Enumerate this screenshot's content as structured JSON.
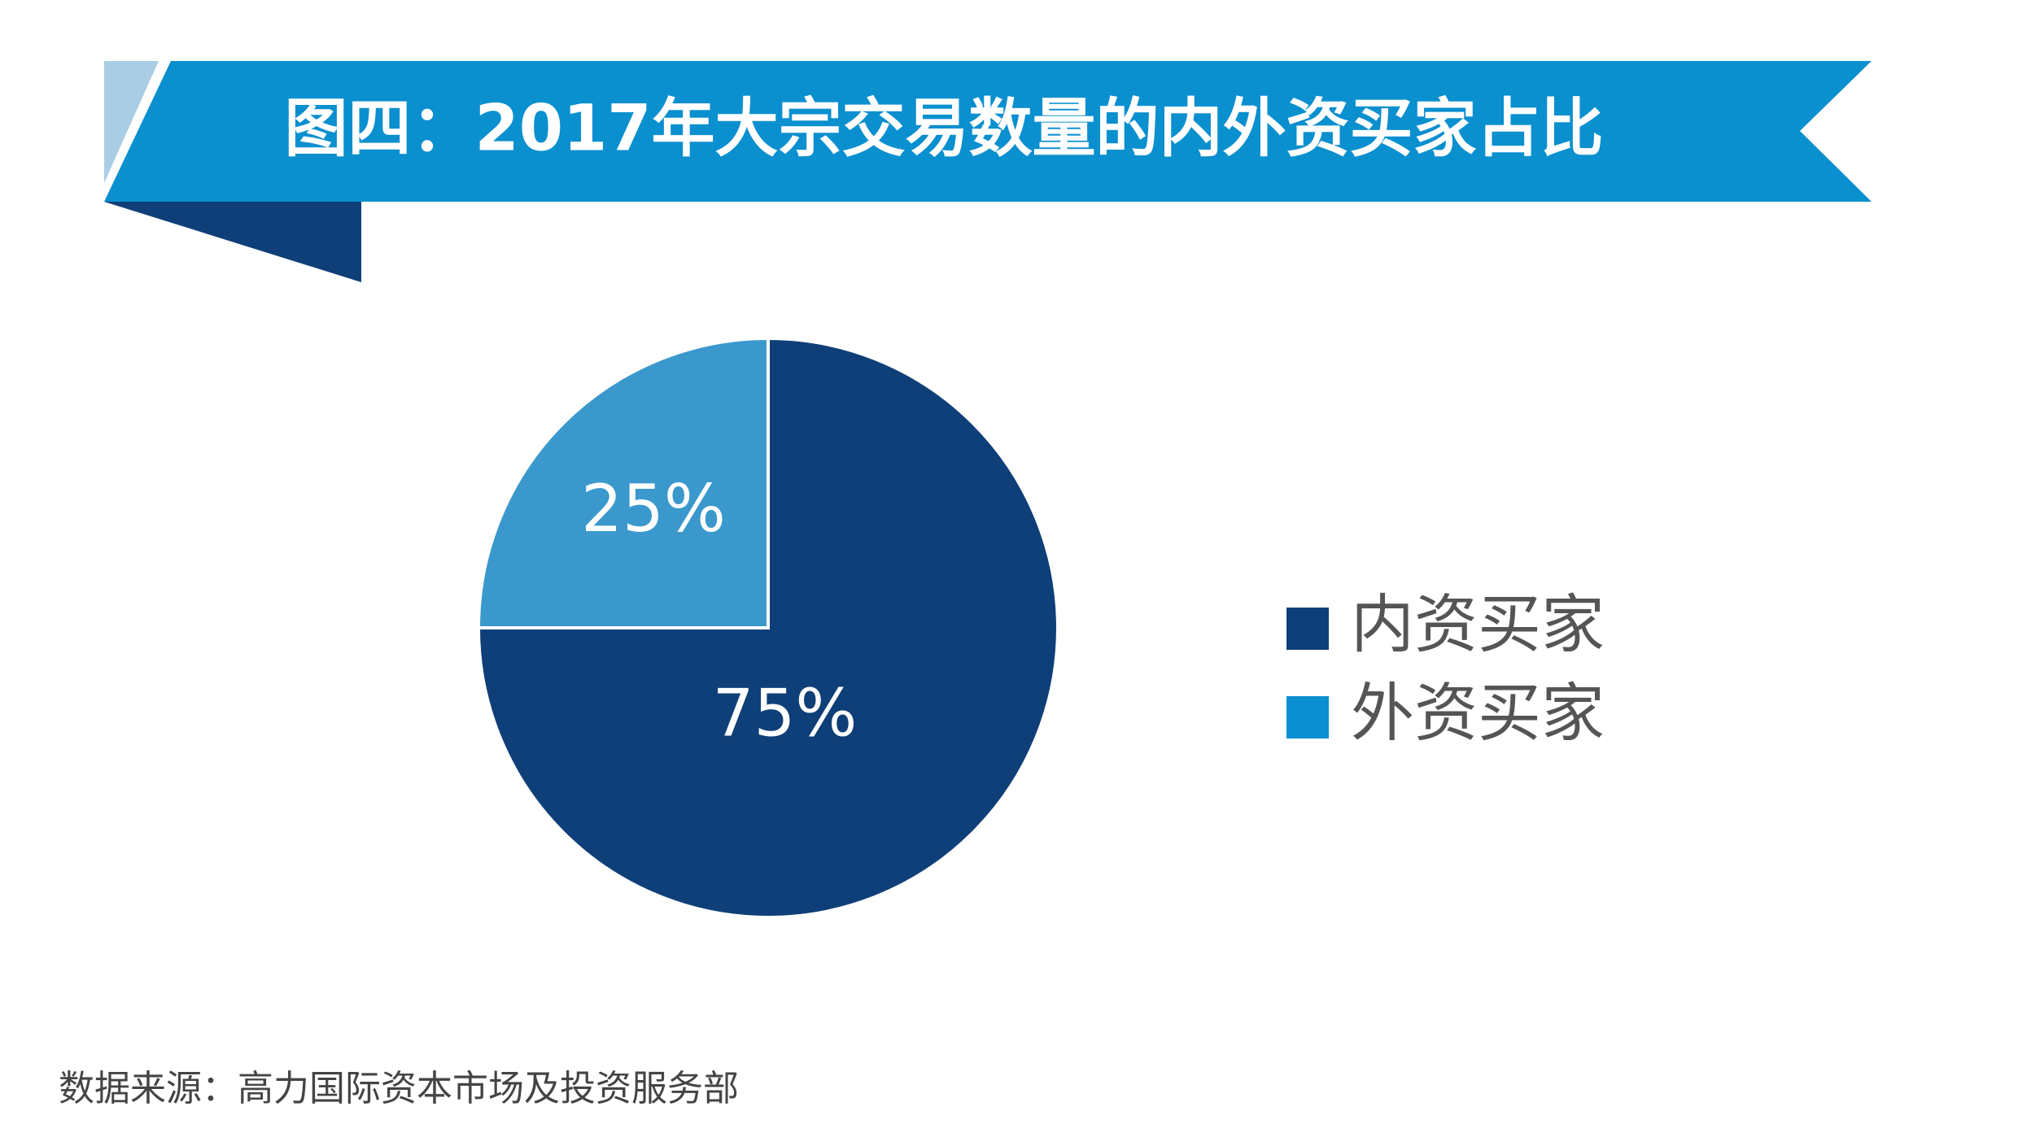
{
  "chart_data": {
    "type": "pie",
    "title": "图四：2017年大宗交易数量的内外资买家占比",
    "categories": [
      "内资买家",
      "外资买家"
    ],
    "values": [
      75,
      25
    ],
    "value_labels": [
      "75%",
      "25%"
    ],
    "colors": [
      "#0f3f78",
      "#3a98cc"
    ],
    "legend_colors": [
      "#0f3f78",
      "#0a8fd0"
    ],
    "source": "数据来源：高力国际资本市场及投资服务部"
  }
}
